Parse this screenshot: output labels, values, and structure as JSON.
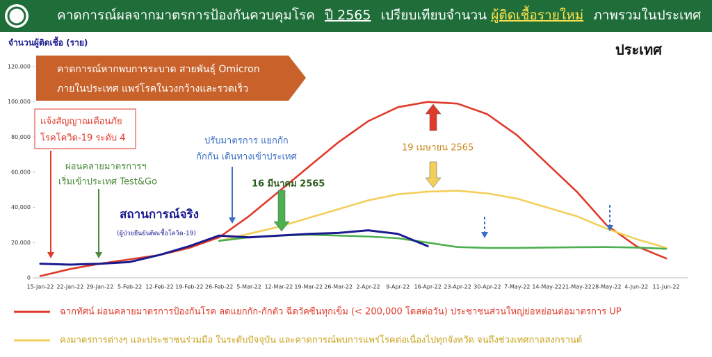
{
  "chart_data": {
    "type": "line",
    "title": [
      "คาดการณ์ผลจากมาตรการป้องกันควบคุมโรค",
      "ปี 2565",
      "เปรียบเทียบจำนวน",
      "ผู้ติดเชื้อรายใหม่",
      "ภาพรวมในประเทศ"
    ],
    "subtitle": "ประเทศ",
    "y_label": "จำนวนผู้ติดเชื้อ (ราย)",
    "x": [
      "15-Jan-22",
      "22-Jan-22",
      "29-Jan-22",
      "5-Feb-22",
      "12-Feb-22",
      "19-Feb-22",
      "26-Feb-22",
      "5-Mar-22",
      "12-Mar-22",
      "19-Mar-22",
      "26-Mar-22",
      "2-Apr-22",
      "9-Apr-22",
      "16-Apr-22",
      "23-Apr-22",
      "30-Apr-22",
      "7-May-22",
      "14-May-22",
      "21-May-22",
      "28-May-22",
      "4-Jun-22",
      "11-Jun-22"
    ],
    "ylim": [
      0,
      120000
    ],
    "yticks": [
      0,
      {
        "value": 20000,
        "label": "20,000"
      },
      {
        "value": 40000,
        "label": "40,000"
      },
      {
        "value": 60000,
        "label": "60,000"
      },
      {
        "value": 80000,
        "label": "80,000"
      },
      {
        "value": 100000,
        "label": "100,000"
      },
      {
        "value": 120000,
        "label": "120,000"
      }
    ],
    "grid": false,
    "series": [
      {
        "name": "ฉากทัศน์ ผ่อนคลายมาตรการป้องกันโรค ลดแยกกัก-กักตัว ฉีดวัคซีนทุกเข็ม (< 200,000 โดสต่อวัน) ประชาชนส่วนใหญ่ย่อหย่อนต่อมาตรการ UP",
        "color": "#e03a2a",
        "values": [
          1000,
          5000,
          8000,
          10500,
          13000,
          17000,
          23000,
          35000,
          49000,
          63000,
          77000,
          89000,
          97000,
          100000,
          99000,
          93000,
          81000,
          65000,
          49000,
          30000,
          18000,
          11000
        ]
      },
      {
        "name": "คงมาตรการต่างๆ และประชาชนร่วมมือ ในระดับปัจจุบัน และคาดการณ์พบการแพร่โรคต่อเนื่องไปทุกจังหวัด จนถึงช่วงเทศกาลสงกรานต์",
        "color": "#f2cf5b",
        "values": [
          null,
          null,
          null,
          null,
          null,
          null,
          21000,
          25000,
          29000,
          34000,
          39000,
          44000,
          47500,
          49000,
          49500,
          48000,
          45000,
          40000,
          35000,
          28000,
          22000,
          17000
        ]
      },
      {
        "color": "#4caf50",
        "values": [
          null,
          null,
          null,
          null,
          null,
          null,
          21000,
          23000,
          24000,
          24500,
          24000,
          23500,
          22500,
          20000,
          17500,
          17000,
          17000,
          17200,
          17400,
          17500,
          17200,
          16500
        ]
      },
      {
        "name": "สถานการณ์จริง",
        "color": "#1a1a8f",
        "values": [
          8000,
          7500,
          8000,
          9000,
          13000,
          18000,
          24000,
          23000,
          24000,
          25000,
          25500,
          27000,
          25000,
          18000,
          null,
          null,
          null,
          null,
          null,
          null,
          null,
          null
        ]
      }
    ],
    "annotations": {
      "forecast": [
        "คาดการณ์หากพบการระบาด สายพันธุ์ Omicron",
        "ภายในประเทศ แพร่โรคในวงกว้างและรวดเร็ว"
      ],
      "alert": [
        "แจ้งสัญญาณเตือนภัย",
        "โรคโควิด-19 ระดับ 4"
      ],
      "relax": [
        "ผ่อนคลายมาตรการฯ",
        "เริ่มเข้าประเทศ Test&Go"
      ],
      "adjust": [
        "ปรับมาตรการ แยกกัก",
        "กักกัน เดินทางเข้าประเทศ"
      ],
      "date1": "16 มีนาคม 2565",
      "date2": "19 เมษายน 2565",
      "actual_note": "(ผู้ป่วยยืนยันติดเชื้อโควิด-19)"
    }
  }
}
